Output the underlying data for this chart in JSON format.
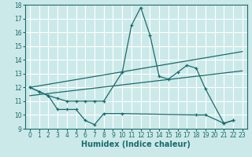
{
  "xlabel": "Humidex (Indice chaleur)",
  "xlim": [
    -0.5,
    23.5
  ],
  "ylim": [
    9,
    18
  ],
  "yticks": [
    9,
    10,
    11,
    12,
    13,
    14,
    15,
    16,
    17,
    18
  ],
  "xticks": [
    0,
    1,
    2,
    3,
    4,
    5,
    6,
    7,
    8,
    9,
    10,
    11,
    12,
    13,
    14,
    15,
    16,
    17,
    18,
    19,
    20,
    21,
    22,
    23
  ],
  "background_color": "#cce9e9",
  "grid_color": "#ffffff",
  "line_color": "#1a6b6b",
  "series": [
    {
      "x": [
        0,
        1,
        2,
        3,
        4,
        5,
        6,
        7,
        8,
        10,
        11,
        12,
        13,
        14,
        15,
        16,
        17,
        18,
        19,
        21,
        22
      ],
      "y": [
        12.0,
        11.7,
        11.4,
        11.2,
        11.0,
        11.0,
        11.0,
        11.0,
        11.0,
        13.1,
        16.5,
        17.8,
        15.8,
        12.8,
        12.6,
        13.1,
        13.6,
        13.4,
        11.9,
        9.4,
        9.6
      ],
      "marker": true,
      "connect_all": false
    },
    {
      "x": [
        0,
        1,
        2,
        3,
        4,
        5,
        6,
        7,
        8,
        10,
        18,
        19,
        21,
        22
      ],
      "y": [
        12.0,
        11.7,
        11.4,
        10.4,
        10.4,
        10.4,
        9.6,
        9.3,
        10.1,
        10.1,
        10.0,
        10.0,
        9.4,
        9.6
      ],
      "marker": true,
      "connect_all": true
    },
    {
      "x": [
        0,
        23
      ],
      "y": [
        12.0,
        14.6
      ],
      "marker": false
    },
    {
      "x": [
        0,
        23
      ],
      "y": [
        11.4,
        13.2
      ],
      "marker": false
    }
  ]
}
